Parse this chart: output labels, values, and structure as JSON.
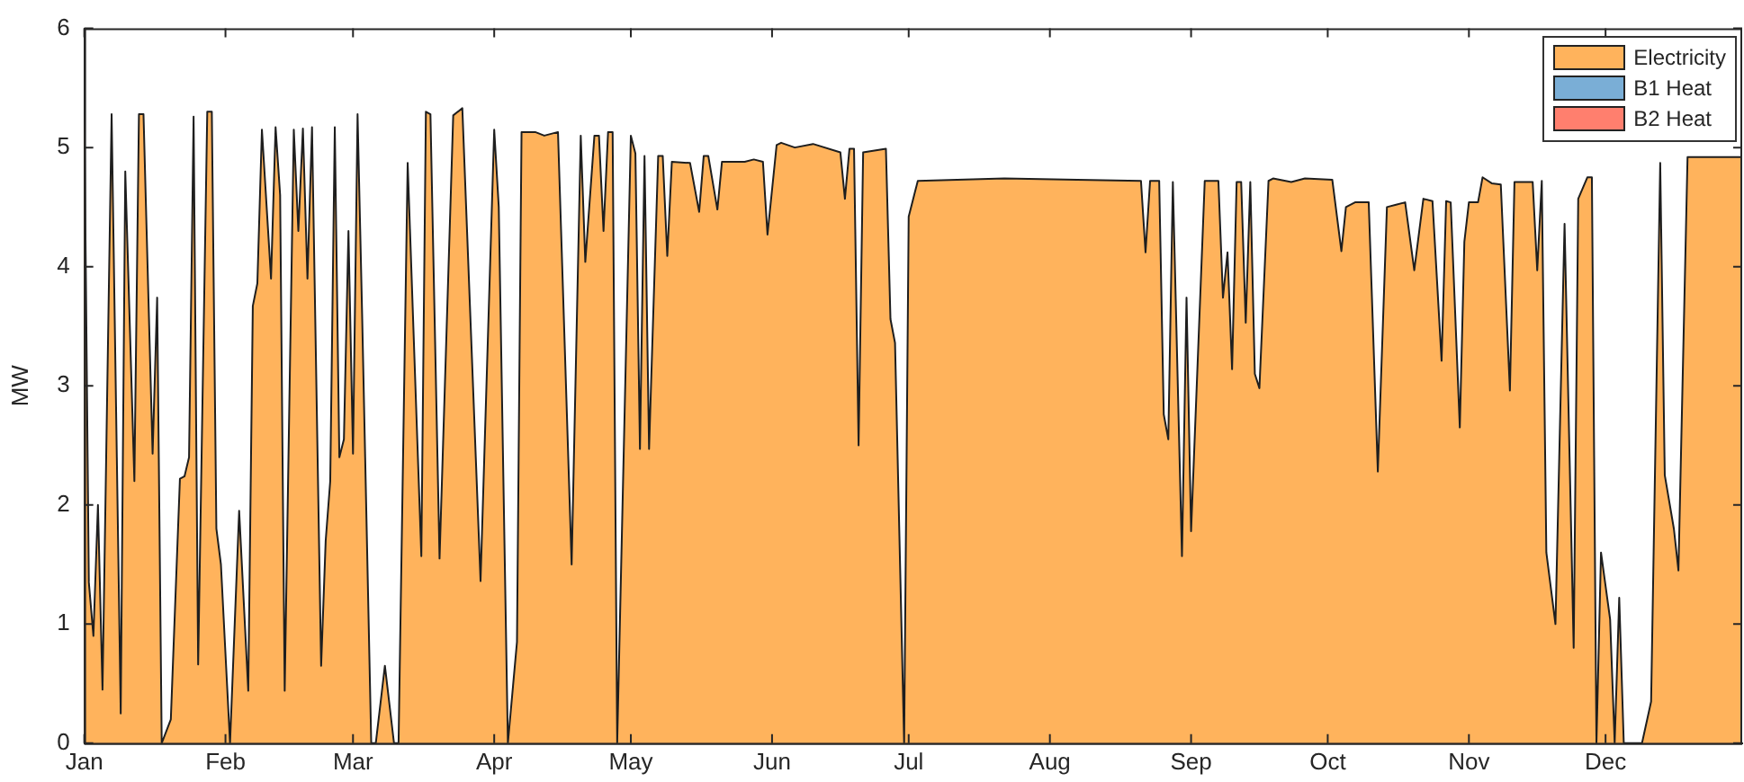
{
  "chart_data": {
    "type": "area",
    "ylabel": "MW",
    "legend": "top right",
    "grid": false,
    "xlim": [
      "--01-01",
      "--12-31"
    ],
    "xticks": [
      {
        "value": "--01-01",
        "label": "Jan"
      },
      {
        "value": "--02-01",
        "label": "Feb"
      },
      {
        "value": "--03-01",
        "label": "Mar"
      },
      {
        "value": "--04-01",
        "label": "Apr"
      },
      {
        "value": "--05-01",
        "label": "May"
      },
      {
        "value": "--06-01",
        "label": "Jun"
      },
      {
        "value": "--07-01",
        "label": "Jul"
      },
      {
        "value": "--08-01",
        "label": "Aug"
      },
      {
        "value": "--09-01",
        "label": "Sep"
      },
      {
        "value": "--10-01",
        "label": "Oct"
      },
      {
        "value": "--11-01",
        "label": "Nov"
      },
      {
        "value": "--12-01",
        "label": "Dec"
      }
    ],
    "ylim": [
      0,
      6
    ],
    "yticks": [
      0,
      1,
      2,
      3,
      4,
      5,
      6
    ],
    "series": [
      {
        "name": "Electricity",
        "color": "#ffb35c",
        "x": [
          "--01-01",
          "--01-02",
          "--01-03",
          "--01-04",
          "--01-05",
          "--01-07",
          "--01-09",
          "--01-10",
          "--01-12",
          "--01-13",
          "--01-14",
          "--01-16",
          "--01-17",
          "--01-18",
          "--01-20",
          "--01-22",
          "--01-23",
          "--01-24",
          "--01-25",
          "--01-26",
          "--01-28",
          "--01-29",
          "--01-30",
          "--01-31",
          "--02-02",
          "--02-04",
          "--02-06",
          "--02-07",
          "--02-08",
          "--02-09",
          "--02-11",
          "--02-12",
          "--02-13",
          "--02-14",
          "--02-16",
          "--02-17",
          "--02-18",
          "--02-19",
          "--02-20",
          "--02-22",
          "--02-23",
          "--02-24",
          "--02-25",
          "--02-26",
          "--02-27",
          "--02-28",
          "--03-01",
          "--03-02",
          "--03-03",
          "--03-05",
          "--03-06",
          "--03-08",
          "--03-10",
          "--03-11",
          "--03-13",
          "--03-16",
          "--03-17",
          "--03-18",
          "--03-20",
          "--03-23",
          "--03-25",
          "--03-29",
          "--04-01",
          "--04-02",
          "--04-04",
          "--04-06",
          "--04-07",
          "--04-10",
          "--04-12",
          "--04-15",
          "--04-18",
          "--04-20",
          "--04-21",
          "--04-23",
          "--04-24",
          "--04-25",
          "--04-26",
          "--04-27",
          "--04-28",
          "--05-01",
          "--05-02",
          "--05-03",
          "--05-04",
          "--05-05",
          "--05-07",
          "--05-08",
          "--05-09",
          "--05-10",
          "--05-14",
          "--05-16",
          "--05-17",
          "--05-18",
          "--05-20",
          "--05-21",
          "--05-26",
          "--05-28",
          "--05-30",
          "--05-31",
          "--06-02",
          "--06-03",
          "--06-06",
          "--06-10",
          "--06-16",
          "--06-17",
          "--06-18",
          "--06-19",
          "--06-20",
          "--06-21",
          "--06-26",
          "--06-27",
          "--06-28",
          "--06-30",
          "--07-01",
          "--07-03",
          "--07-22",
          "--08-07",
          "--08-21",
          "--08-22",
          "--08-23",
          "--08-25",
          "--08-26",
          "--08-27",
          "--08-28",
          "--08-30",
          "--08-31",
          "--09-01",
          "--09-04",
          "--09-07",
          "--09-08",
          "--09-09",
          "--09-10",
          "--09-11",
          "--09-12",
          "--09-13",
          "--09-14",
          "--09-15",
          "--09-16",
          "--09-18",
          "--09-19",
          "--09-23",
          "--09-26",
          "--10-02",
          "--10-04",
          "--10-05",
          "--10-07",
          "--10-10",
          "--10-12",
          "--10-14",
          "--10-16",
          "--10-18",
          "--10-20",
          "--10-22",
          "--10-24",
          "--10-26",
          "--10-27",
          "--10-28",
          "--10-30",
          "--10-31",
          "--11-01",
          "--11-03",
          "--11-04",
          "--11-06",
          "--11-08",
          "--11-10",
          "--11-11",
          "--11-15",
          "--11-16",
          "--11-17",
          "--11-18",
          "--11-20",
          "--11-22",
          "--11-24",
          "--11-25",
          "--11-27",
          "--11-28",
          "--11-29",
          "--11-30",
          "--12-02",
          "--12-03",
          "--12-04",
          "--12-05",
          "--12-09",
          "--12-11",
          "--12-13",
          "--12-14",
          "--12-16",
          "--12-17",
          "--12-19",
          "--12-31"
        ],
        "values": [
          5.3,
          1.35,
          0.9,
          2.0,
          0.45,
          5.28,
          0.25,
          4.8,
          2.2,
          5.28,
          5.28,
          2.43,
          3.74,
          0,
          0.2,
          2.22,
          2.24,
          2.4,
          5.26,
          0.66,
          5.3,
          5.3,
          1.8,
          1.5,
          0,
          1.95,
          0.44,
          3.67,
          3.86,
          5.15,
          3.9,
          5.17,
          4.6,
          0.44,
          5.15,
          4.3,
          5.16,
          3.9,
          5.17,
          0.65,
          1.7,
          2.2,
          5.17,
          2.4,
          2.55,
          4.3,
          2.43,
          5.28,
          3.6,
          0,
          0,
          0.65,
          0,
          0,
          4.87,
          1.57,
          5.3,
          5.28,
          1.55,
          5.27,
          5.33,
          1.36,
          5.15,
          4.5,
          0,
          0.85,
          5.13,
          5.13,
          5.1,
          5.13,
          1.5,
          5.1,
          4.04,
          5.1,
          5.1,
          4.3,
          5.13,
          5.13,
          0,
          5.1,
          4.95,
          2.47,
          4.93,
          2.47,
          4.93,
          4.93,
          4.09,
          4.88,
          4.87,
          4.46,
          4.93,
          4.93,
          4.48,
          4.88,
          4.88,
          4.9,
          4.88,
          4.27,
          5.02,
          5.04,
          5.0,
          5.03,
          4.96,
          4.57,
          4.99,
          4.99,
          2.5,
          4.96,
          4.99,
          3.56,
          3.36,
          0,
          4.42,
          4.72,
          4.74,
          4.73,
          4.72,
          4.12,
          4.72,
          4.72,
          2.76,
          2.55,
          4.71,
          1.57,
          3.74,
          1.78,
          4.72,
          4.72,
          3.74,
          4.12,
          3.14,
          4.71,
          4.71,
          3.53,
          4.71,
          3.1,
          2.98,
          4.72,
          4.74,
          4.71,
          4.74,
          4.73,
          4.13,
          4.5,
          4.54,
          4.54,
          2.28,
          4.5,
          4.52,
          4.54,
          3.97,
          4.57,
          4.55,
          3.21,
          4.55,
          4.54,
          2.65,
          4.21,
          4.54,
          4.54,
          4.75,
          4.7,
          4.69,
          2.96,
          4.71,
          4.71,
          3.97,
          4.72,
          1.6,
          1.0,
          4.36,
          0.8,
          4.57,
          4.75,
          4.75,
          0,
          1.6,
          1.04,
          0,
          1.22,
          0,
          0,
          0.35,
          4.87,
          2.25,
          1.8,
          1.45,
          4.92,
          4.92
        ]
      },
      {
        "name": "B1 Heat",
        "color": "#7aaed6"
      },
      {
        "name": "B2 Heat",
        "color": "#ff7f6e"
      }
    ]
  }
}
